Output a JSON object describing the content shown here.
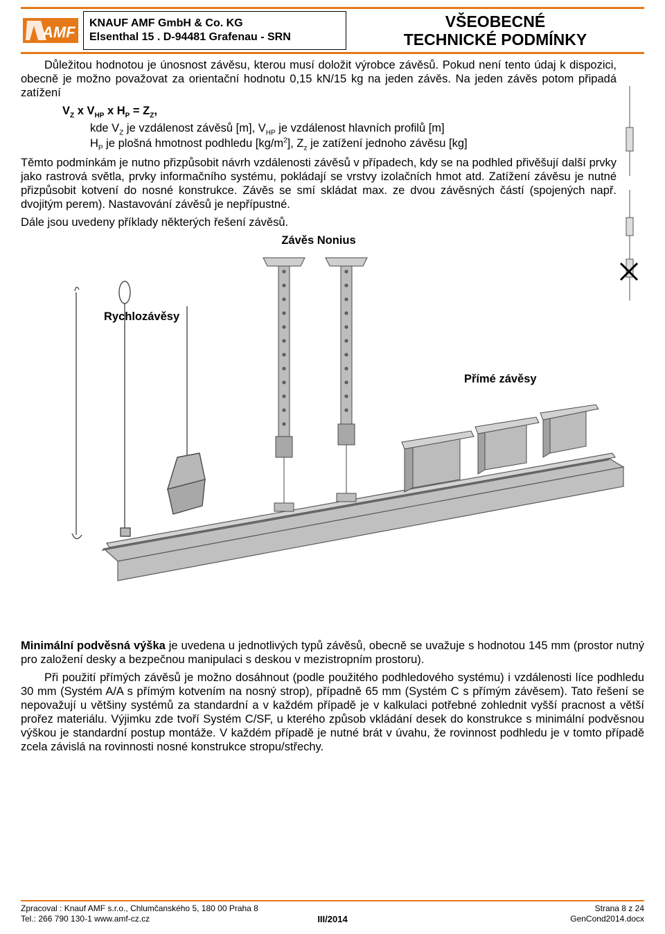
{
  "brand": {
    "accent_color": "#e67817",
    "logo_bg": "#e67817",
    "logo_text": "AMF"
  },
  "header": {
    "company_line1": "KNAUF AMF GmbH & Co. KG",
    "company_line2": "Elsenthal 15 . D-94481 Grafenau - SRN",
    "title_line1": "VŠEOBECNÉ",
    "title_line2": "TECHNICKÉ PODMÍNKY"
  },
  "body": {
    "p1": "Důležitou hodnotou je únosnost závěsu, kterou musí doložit výrobce závěsů. Pokud není tento údaj k dispozici, obecně je možno považovat za orientační hodnotu 0,15 kN/15 kg na jeden závěs. Na jeden závěs potom připadá zatížení",
    "formula_html": "V<sub>Z</sub> x V<sub>HP</sub> x H<sub>P</sub> = Z<sub>Z</sub>,",
    "formula_desc1_html": "kde V<sub>Z</sub> je vzdálenost závěsů [m], V<sub>HP</sub> je vzdálenost hlavních profilů [m]",
    "formula_desc2_html": "H<sub>P</sub> je plošná hmotnost podhledu [kg/m<sup>2</sup>], Z<sub>z</sub> je zatížení jednoho závěsu [kg]",
    "p2": "Těmto podmínkám je nutno přizpůsobit návrh vzdálenosti závěsů v případech, kdy se na podhled přivěšují další prvky jako rastrová světla, prvky informačního systému, pokládají se vrstvy izolačních hmot atd. Zatížení závěsu je nutné přizpůsobit kotvení do nosné konstrukce. Závěs se smí skládat max. ze dvou závěsných částí (spojených např. dvojitým perem). Nastavování závěsů je nepřípustné.",
    "p3": "Dále jsou uvedeny příklady některých řešení závěsů.",
    "label_nonius": "Závěs Nonius",
    "label_rychlo": "Rychlozávěsy",
    "label_prime": "Přímé závěsy",
    "p4_html": "<b>Minimální podvěsná výška</b> je uvedena u jednotlivých typů závěsů, obecně se uvažuje s hodnotou 145 mm (prostor nutný pro založení desky a bezpečnou manipulaci s deskou v mezistropním prostoru).",
    "p5": "Při použití přímých závěsů je možno dosáhnout (podle použitého podhledového systému) i vzdálenosti líce podhledu 30 mm (Systém A/A s přímým kotvením na nosný strop), případně 65 mm (Systém C s přímým závěsem). Tato řešení se nepovažují u většiny systémů za standardní a v každém případě je v kalkulaci potřebné zohlednit vyšší pracnost a větší prořez materiálu. Výjimku zde tvoří Systém C/SF, u kterého způsob vkládání desek do konstrukce s minimální podvěsnou výškou je standardní postup montáže. V každém případě je nutné brát v úvahu, že rovinnost podhledu je v tomto případě zcela závislá na rovinnosti nosné konstrukce stropu/střechy.",
    "right_margin_width": 40
  },
  "diagram": {
    "rail_color": "#b4b4b4",
    "rail_stroke": "#5a5a5a",
    "hanger_fill": "#b8b8b8",
    "hanger_stroke": "#4a4a4a"
  },
  "footer": {
    "left1": "Zpracoval : Knauf AMF s.r.o., Chlumčanského 5, 180 00 Praha 8",
    "left2": "Tel.: 266 790 130-1  www.amf-cz.cz",
    "center": "III/2014",
    "right1": "Strana 8 z 24",
    "right2": "GenCond2014.docx"
  }
}
